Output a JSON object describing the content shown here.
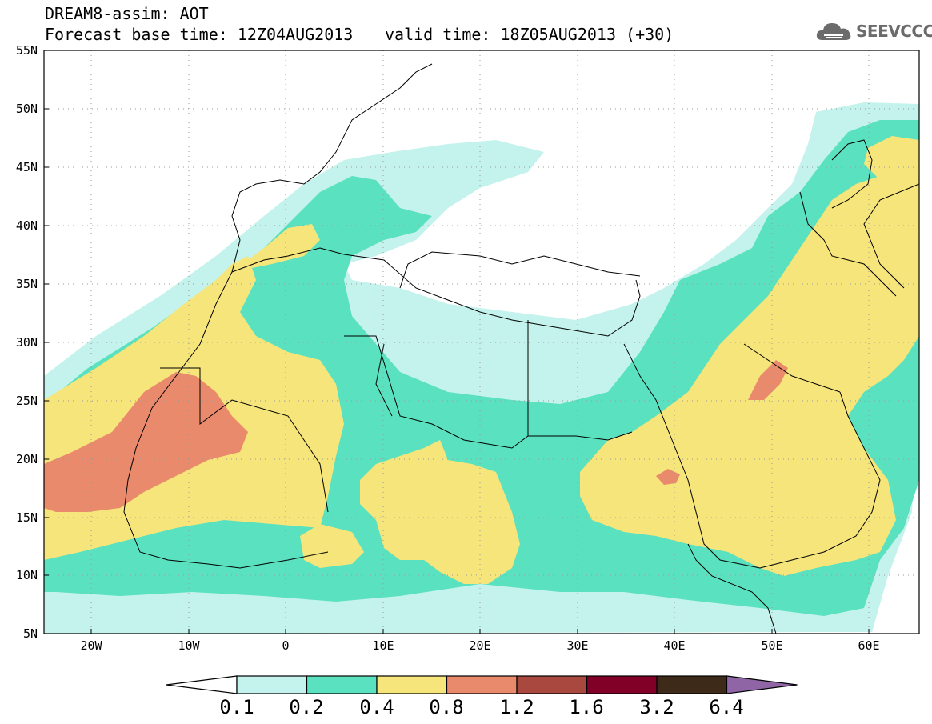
{
  "title": {
    "line1": "DREAM8-assim: AOT",
    "line2_base": "Forecast base time: 12Z04AUG2013",
    "line2_valid": "valid time: 18Z05AUG2013 (+30)"
  },
  "logo": {
    "text": "SEEVCCC",
    "icon": "cloud-icon"
  },
  "map": {
    "y_ticks": [
      "55N",
      "50N",
      "45N",
      "40N",
      "35N",
      "30N",
      "25N",
      "20N",
      "15N",
      "10N",
      "5N"
    ],
    "x_ticks": [
      "20W",
      "10W",
      "0",
      "10E",
      "20E",
      "30E",
      "40E",
      "50E",
      "60E"
    ],
    "lon_range": [
      -25,
      65
    ],
    "lat_range": [
      5,
      55
    ]
  },
  "colorbar": {
    "labels": [
      "0.1",
      "0.2",
      "0.4",
      "0.8",
      "1.2",
      "1.6",
      "3.2",
      "6.4"
    ],
    "colors": [
      "#ffffff",
      "#c4f2ec",
      "#5ae1bf",
      "#f6e57a",
      "#ea8a6c",
      "#a9483e",
      "#800028",
      "#3e2a18",
      "#8f65a6"
    ]
  }
}
